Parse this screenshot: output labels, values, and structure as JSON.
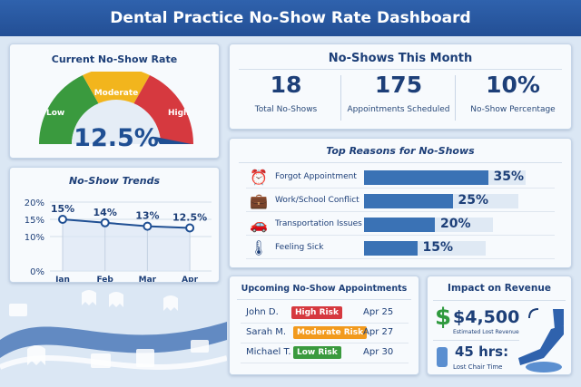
{
  "header": {
    "title": "Dental Practice No-Show Rate Dashboard"
  },
  "gauge": {
    "title": "Current No-Show Rate",
    "value": "12.5%",
    "value_fraction": 0.125,
    "zones": [
      {
        "label": "Low",
        "color": "#3a9a3e"
      },
      {
        "label": "Moderate",
        "color": "#f2b51d"
      },
      {
        "label": "High",
        "color": "#d6393f"
      }
    ]
  },
  "chart_data": {
    "type": "line",
    "title": "No-Show Trends",
    "categories": [
      "Jan",
      "Feb",
      "Mar",
      "Apr"
    ],
    "values": [
      15,
      14,
      13,
      12.5
    ],
    "data_labels": [
      "15%",
      "14%",
      "13%",
      "12.5%"
    ],
    "yticks": [
      "0%",
      "10%",
      "15%",
      "20%"
    ],
    "ytick_values": [
      0,
      10,
      15,
      20
    ],
    "ylim": [
      0,
      20
    ],
    "grid": true,
    "color": "#1f4f93"
  },
  "month": {
    "title": "No-Shows This Month",
    "stats": [
      {
        "value": "18",
        "label": "Total No-Shows"
      },
      {
        "value": "175",
        "label": "Appointments Scheduled"
      },
      {
        "value": "10%",
        "label": "No-Show Percentage"
      }
    ]
  },
  "reasons": {
    "title": "Top Reasons for No-Shows",
    "items": [
      {
        "icon": "alarm-clock-icon",
        "label": "Forgot Appointment",
        "value": "35%",
        "pct": 35
      },
      {
        "icon": "briefcase-icon",
        "label": "Work/School Conflict",
        "value": "25%",
        "pct": 25
      },
      {
        "icon": "car-icon",
        "label": "Transportation Issues",
        "value": "20%",
        "pct": 20
      },
      {
        "icon": "thermometer-icon",
        "label": "Feeling Sick",
        "value": "15%",
        "pct": 15
      }
    ]
  },
  "upcoming": {
    "title": "Upcoming No-Show Appointments",
    "rows": [
      {
        "name": "John D.",
        "risk": "High Risk",
        "color": "#d6393f",
        "date": "Apr 25"
      },
      {
        "name": "Sarah M.",
        "risk": "Moderate Risk",
        "color": "#f29a1d",
        "date": "Apr 27"
      },
      {
        "name": "Michael T.",
        "risk": "Low Risk",
        "color": "#3a9a3e",
        "date": "Apr 30"
      }
    ]
  },
  "revenue": {
    "title": "Impact on Revenue",
    "amount": "$4,500",
    "amount_label": "Estimated Lost Revenue",
    "hours": "45 hrs:",
    "hours_label": "Lost Chair Time",
    "dollar": "$"
  }
}
